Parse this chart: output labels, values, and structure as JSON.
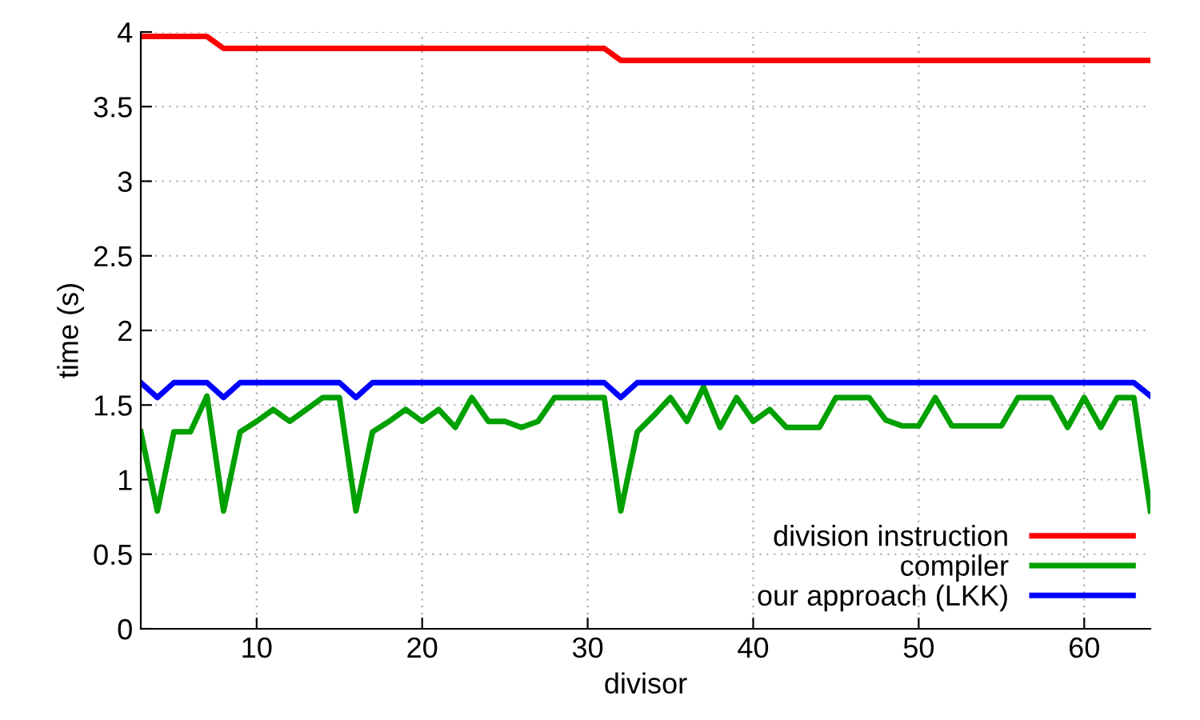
{
  "chart_data": {
    "type": "line",
    "xlabel": "divisor",
    "ylabel": "time (s)",
    "x": [
      3,
      4,
      5,
      6,
      7,
      8,
      9,
      10,
      11,
      12,
      13,
      14,
      15,
      16,
      17,
      18,
      19,
      20,
      21,
      22,
      23,
      24,
      25,
      26,
      27,
      28,
      29,
      30,
      31,
      32,
      33,
      34,
      35,
      36,
      37,
      38,
      39,
      40,
      41,
      42,
      43,
      44,
      45,
      46,
      47,
      48,
      49,
      50,
      51,
      52,
      53,
      54,
      55,
      56,
      57,
      58,
      59,
      60,
      61,
      62,
      63,
      64
    ],
    "series": [
      {
        "name": "division instruction",
        "color": "#ff0000",
        "values": [
          3.97,
          3.97,
          3.97,
          3.97,
          3.97,
          3.89,
          3.89,
          3.89,
          3.89,
          3.89,
          3.89,
          3.89,
          3.89,
          3.89,
          3.89,
          3.89,
          3.89,
          3.89,
          3.89,
          3.89,
          3.89,
          3.89,
          3.89,
          3.89,
          3.89,
          3.89,
          3.89,
          3.89,
          3.89,
          3.81,
          3.81,
          3.81,
          3.81,
          3.81,
          3.81,
          3.81,
          3.81,
          3.81,
          3.81,
          3.81,
          3.81,
          3.81,
          3.81,
          3.81,
          3.81,
          3.81,
          3.81,
          3.81,
          3.81,
          3.81,
          3.81,
          3.81,
          3.81,
          3.81,
          3.81,
          3.81,
          3.81,
          3.81,
          3.81,
          3.81,
          3.81,
          3.81
        ]
      },
      {
        "name": "compiler",
        "color": "#00a000",
        "values": [
          1.32,
          0.79,
          1.32,
          1.32,
          1.56,
          0.79,
          1.32,
          1.39,
          1.47,
          1.39,
          1.47,
          1.55,
          1.55,
          0.79,
          1.32,
          1.39,
          1.47,
          1.39,
          1.47,
          1.35,
          1.55,
          1.39,
          1.39,
          1.35,
          1.39,
          1.55,
          1.55,
          1.55,
          1.55,
          0.79,
          1.32,
          1.43,
          1.55,
          1.39,
          1.62,
          1.35,
          1.55,
          1.39,
          1.47,
          1.35,
          1.35,
          1.35,
          1.55,
          1.55,
          1.55,
          1.4,
          1.36,
          1.36,
          1.55,
          1.36,
          1.36,
          1.36,
          1.36,
          1.55,
          1.55,
          1.55,
          1.35,
          1.55,
          1.35,
          1.55,
          1.55,
          0.79
        ]
      },
      {
        "name": "our approach (LKK)",
        "color": "#0000ff",
        "values": [
          1.65,
          1.55,
          1.65,
          1.65,
          1.65,
          1.55,
          1.65,
          1.65,
          1.65,
          1.65,
          1.65,
          1.65,
          1.65,
          1.55,
          1.65,
          1.65,
          1.65,
          1.65,
          1.65,
          1.65,
          1.65,
          1.65,
          1.65,
          1.65,
          1.65,
          1.65,
          1.65,
          1.65,
          1.65,
          1.55,
          1.65,
          1.65,
          1.65,
          1.65,
          1.65,
          1.65,
          1.65,
          1.65,
          1.65,
          1.65,
          1.65,
          1.65,
          1.65,
          1.65,
          1.65,
          1.65,
          1.65,
          1.65,
          1.65,
          1.65,
          1.65,
          1.65,
          1.65,
          1.65,
          1.65,
          1.65,
          1.65,
          1.65,
          1.65,
          1.65,
          1.65,
          1.56
        ]
      }
    ],
    "xlim": [
      3,
      64
    ],
    "xticks": [
      10,
      20,
      30,
      40,
      50,
      60
    ],
    "ylim": [
      0,
      4
    ],
    "yticks": [
      0,
      0.5,
      1,
      1.5,
      2,
      2.5,
      3,
      3.5,
      4
    ],
    "grid": true,
    "legend": "bottom right",
    "marker": "none",
    "line_style": "solid"
  }
}
